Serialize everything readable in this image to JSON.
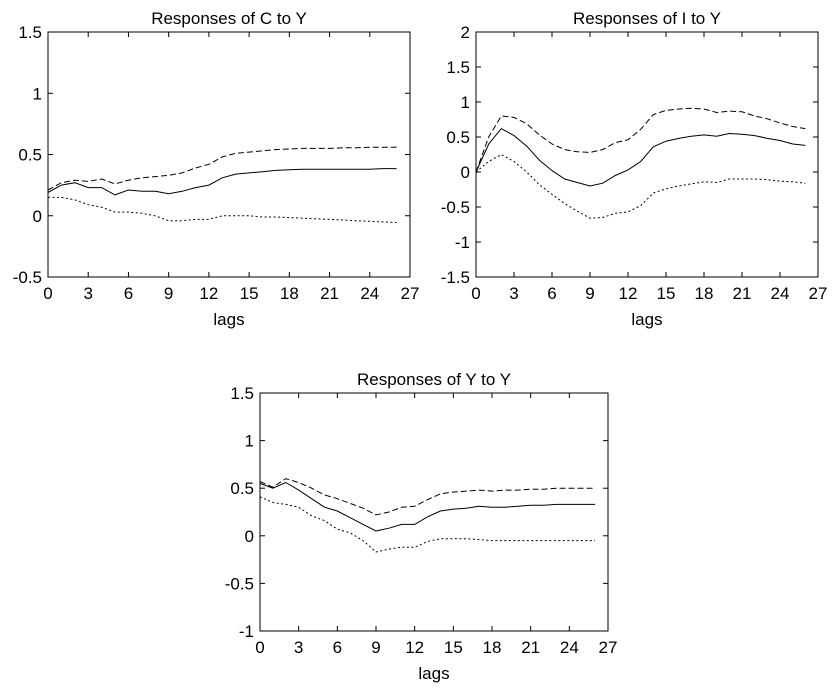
{
  "chart_data": [
    {
      "type": "line",
      "title": "Responses of C to Y",
      "xlabel": "lags",
      "ylabel": "",
      "xlim": [
        0,
        27
      ],
      "ylim": [
        -0.5,
        1.5
      ],
      "xticks": [
        0,
        3,
        6,
        9,
        12,
        15,
        18,
        21,
        24,
        27
      ],
      "yticks": [
        -0.5,
        0,
        0.5,
        1,
        1.5
      ],
      "ytick_labels": [
        "-0.5",
        "0",
        "0.5",
        "1",
        "1.5"
      ],
      "x": [
        0,
        1,
        2,
        3,
        4,
        5,
        6,
        7,
        8,
        9,
        10,
        11,
        12,
        13,
        14,
        15,
        16,
        17,
        18,
        19,
        20,
        21,
        22,
        23,
        24,
        25,
        26
      ],
      "series": [
        {
          "style": "solid",
          "values": [
            0.19,
            0.25,
            0.27,
            0.23,
            0.23,
            0.17,
            0.21,
            0.2,
            0.2,
            0.18,
            0.2,
            0.23,
            0.25,
            0.31,
            0.34,
            0.35,
            0.36,
            0.37,
            0.375,
            0.38,
            0.38,
            0.38,
            0.38,
            0.38,
            0.38,
            0.385,
            0.385
          ]
        },
        {
          "style": "dashed",
          "values": [
            0.21,
            0.27,
            0.29,
            0.28,
            0.3,
            0.26,
            0.29,
            0.31,
            0.32,
            0.33,
            0.35,
            0.39,
            0.42,
            0.48,
            0.51,
            0.52,
            0.53,
            0.54,
            0.545,
            0.55,
            0.55,
            0.55,
            0.555,
            0.555,
            0.56,
            0.56,
            0.56
          ]
        },
        {
          "style": "dotted",
          "values": [
            0.15,
            0.15,
            0.13,
            0.09,
            0.07,
            0.03,
            0.03,
            0.02,
            0.0,
            -0.04,
            -0.04,
            -0.03,
            -0.03,
            0.0,
            0.0,
            0.0,
            -0.01,
            -0.01,
            -0.015,
            -0.02,
            -0.025,
            -0.03,
            -0.035,
            -0.04,
            -0.045,
            -0.05,
            -0.055
          ]
        }
      ]
    },
    {
      "type": "line",
      "title": "Responses of I to Y",
      "xlabel": "lags",
      "ylabel": "",
      "xlim": [
        0,
        27
      ],
      "ylim": [
        -1.5,
        2
      ],
      "xticks": [
        0,
        3,
        6,
        9,
        12,
        15,
        18,
        21,
        24,
        27
      ],
      "yticks": [
        -1.5,
        -1,
        -0.5,
        0,
        0.5,
        1,
        1.5,
        2
      ],
      "ytick_labels": [
        "-1.5",
        "-1",
        "-0.5",
        "0",
        "0.5",
        "1",
        "1.5",
        "2"
      ],
      "x": [
        0,
        1,
        2,
        3,
        4,
        5,
        6,
        7,
        8,
        9,
        10,
        11,
        12,
        13,
        14,
        15,
        16,
        17,
        18,
        19,
        20,
        21,
        22,
        23,
        24,
        25,
        26
      ],
      "series": [
        {
          "style": "solid",
          "values": [
            0.0,
            0.4,
            0.62,
            0.52,
            0.37,
            0.17,
            0.02,
            -0.1,
            -0.15,
            -0.2,
            -0.16,
            -0.05,
            0.03,
            0.15,
            0.36,
            0.44,
            0.48,
            0.51,
            0.53,
            0.51,
            0.55,
            0.54,
            0.52,
            0.48,
            0.45,
            0.4,
            0.38
          ]
        },
        {
          "style": "dashed",
          "values": [
            0.0,
            0.5,
            0.8,
            0.78,
            0.69,
            0.53,
            0.4,
            0.32,
            0.29,
            0.28,
            0.32,
            0.42,
            0.46,
            0.61,
            0.82,
            0.88,
            0.9,
            0.91,
            0.9,
            0.85,
            0.87,
            0.86,
            0.8,
            0.76,
            0.7,
            0.65,
            0.62
          ]
        },
        {
          "style": "dotted",
          "values": [
            0.0,
            0.15,
            0.25,
            0.15,
            0.0,
            -0.18,
            -0.32,
            -0.45,
            -0.56,
            -0.66,
            -0.65,
            -0.59,
            -0.57,
            -0.48,
            -0.3,
            -0.24,
            -0.2,
            -0.17,
            -0.14,
            -0.15,
            -0.1,
            -0.1,
            -0.1,
            -0.11,
            -0.13,
            -0.14,
            -0.16
          ]
        }
      ]
    },
    {
      "type": "line",
      "title": "Responses of Y to Y",
      "xlabel": "lags",
      "ylabel": "",
      "xlim": [
        0,
        27
      ],
      "ylim": [
        -1,
        1.5
      ],
      "xticks": [
        0,
        3,
        6,
        9,
        12,
        15,
        18,
        21,
        24,
        27
      ],
      "yticks": [
        -1,
        -0.5,
        0,
        0.5,
        1,
        1.5
      ],
      "ytick_labels": [
        "-1",
        "-0.5",
        "0",
        "0.5",
        "1",
        "1.5"
      ],
      "x": [
        0,
        1,
        2,
        3,
        4,
        5,
        6,
        7,
        8,
        9,
        10,
        11,
        12,
        13,
        14,
        15,
        16,
        17,
        18,
        19,
        20,
        21,
        22,
        23,
        24,
        25,
        26
      ],
      "series": [
        {
          "style": "solid",
          "values": [
            0.55,
            0.5,
            0.56,
            0.48,
            0.39,
            0.3,
            0.26,
            0.19,
            0.12,
            0.05,
            0.08,
            0.12,
            0.12,
            0.2,
            0.26,
            0.28,
            0.29,
            0.31,
            0.3,
            0.3,
            0.31,
            0.32,
            0.32,
            0.33,
            0.33,
            0.33,
            0.33
          ]
        },
        {
          "style": "dashed",
          "values": [
            0.57,
            0.51,
            0.6,
            0.56,
            0.5,
            0.43,
            0.39,
            0.34,
            0.29,
            0.22,
            0.25,
            0.3,
            0.31,
            0.38,
            0.44,
            0.46,
            0.47,
            0.48,
            0.47,
            0.48,
            0.48,
            0.49,
            0.49,
            0.5,
            0.5,
            0.5,
            0.5
          ]
        },
        {
          "style": "dotted",
          "values": [
            0.41,
            0.35,
            0.33,
            0.3,
            0.21,
            0.16,
            0.07,
            0.03,
            -0.05,
            -0.17,
            -0.14,
            -0.12,
            -0.12,
            -0.06,
            -0.03,
            -0.03,
            -0.03,
            -0.04,
            -0.05,
            -0.05,
            -0.05,
            -0.05,
            -0.05,
            -0.05,
            -0.05,
            -0.05,
            -0.05
          ]
        }
      ]
    }
  ]
}
